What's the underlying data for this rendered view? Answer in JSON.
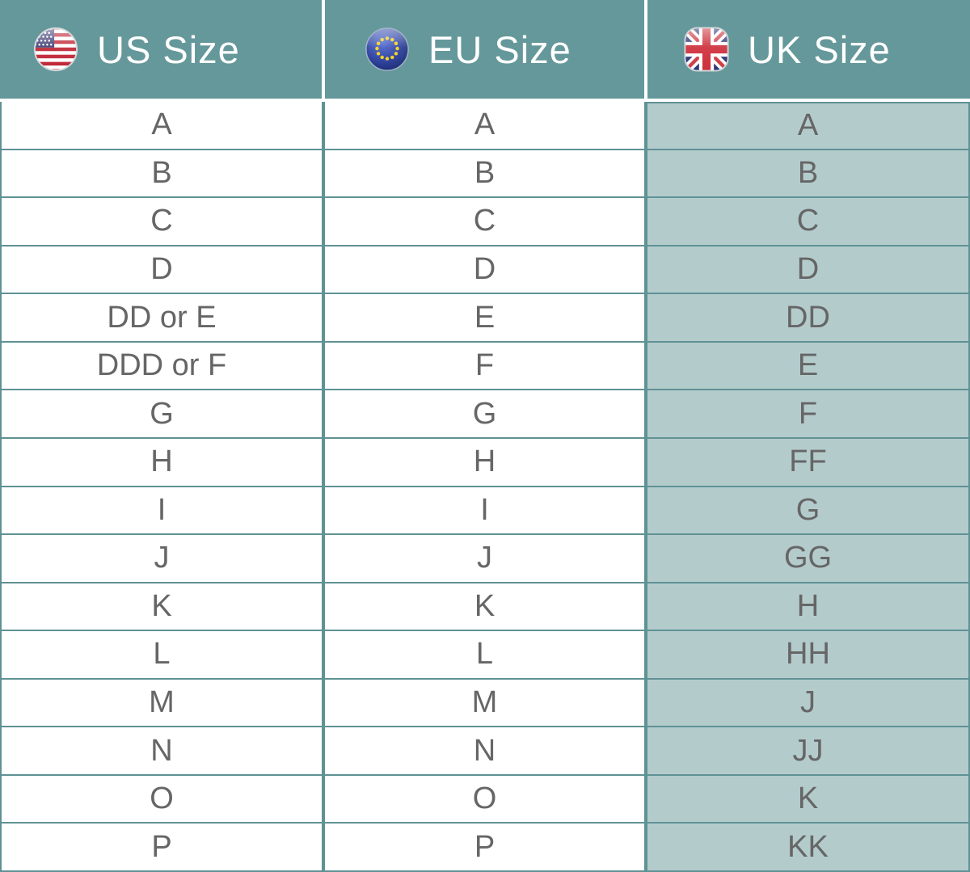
{
  "header": {
    "columns": [
      {
        "label": "US Size",
        "icon": "us-flag-icon"
      },
      {
        "label": "EU Size",
        "icon": "eu-flag-icon"
      },
      {
        "label": "UK Size",
        "icon": "uk-flag-icon"
      }
    ]
  },
  "chart_data": {
    "type": "table",
    "columns": [
      "US Size",
      "EU Size",
      "UK Size"
    ],
    "rows": [
      [
        "A",
        "A",
        "A"
      ],
      [
        "B",
        "B",
        "B"
      ],
      [
        "C",
        "C",
        "C"
      ],
      [
        "D",
        "D",
        "D"
      ],
      [
        "DD or E",
        "E",
        "DD"
      ],
      [
        "DDD or F",
        "F",
        "E"
      ],
      [
        "G",
        "G",
        "F"
      ],
      [
        "H",
        "H",
        "FF"
      ],
      [
        "I",
        "I",
        "G"
      ],
      [
        "J",
        "J",
        "GG"
      ],
      [
        "K",
        "K",
        "H"
      ],
      [
        "L",
        "L",
        "HH"
      ],
      [
        "M",
        "M",
        "J"
      ],
      [
        "N",
        "N",
        "JJ"
      ],
      [
        "O",
        "O",
        "K"
      ],
      [
        "P",
        "P",
        "KK"
      ]
    ],
    "layout": {
      "grid": "on",
      "uk_column_shaded": true
    }
  },
  "colors": {
    "header_background": "#65989a",
    "uk_column_background": "#b4cbcc",
    "grid_line": "#5f9294",
    "body_text": "#666666",
    "header_text": "#ffffff",
    "row_background": "#ffffff"
  }
}
